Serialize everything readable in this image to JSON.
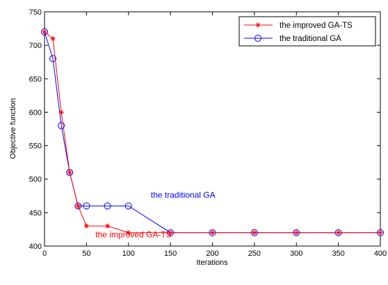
{
  "chart_data": {
    "type": "line",
    "title": "",
    "xlabel": "Iterations",
    "ylabel": "Objective function",
    "xlim": [
      0,
      400
    ],
    "ylim": [
      400,
      750
    ],
    "xticks": [
      0,
      50,
      100,
      150,
      200,
      250,
      300,
      350,
      400
    ],
    "yticks": [
      400,
      450,
      500,
      550,
      600,
      650,
      700,
      750
    ],
    "grid": false,
    "legend_position": "top-right",
    "series": [
      {
        "name": "the improved GA-TS",
        "color": "#ff0000",
        "marker": "asterisk",
        "x": [
          0,
          10,
          20,
          30,
          40,
          50,
          75,
          100,
          150,
          200,
          250,
          300,
          350,
          400
        ],
        "y": [
          720,
          710,
          600,
          510,
          460,
          430,
          430,
          420,
          420,
          420,
          420,
          420,
          420,
          420
        ]
      },
      {
        "name": "the traditional GA",
        "color": "#0000ff",
        "marker": "circle",
        "x": [
          0,
          10,
          20,
          30,
          40,
          50,
          75,
          100,
          150,
          200,
          250,
          300,
          350,
          400
        ],
        "y": [
          720,
          680,
          580,
          510,
          460,
          460,
          460,
          460,
          420,
          420,
          420,
          420,
          420,
          420
        ]
      }
    ],
    "annotations": [
      {
        "text": "the traditional GA",
        "color": "#0000ff",
        "x": 165,
        "y": 472
      },
      {
        "text": "the improved GA-TS",
        "color": "#ff0000",
        "x": 106,
        "y": 413
      }
    ]
  }
}
